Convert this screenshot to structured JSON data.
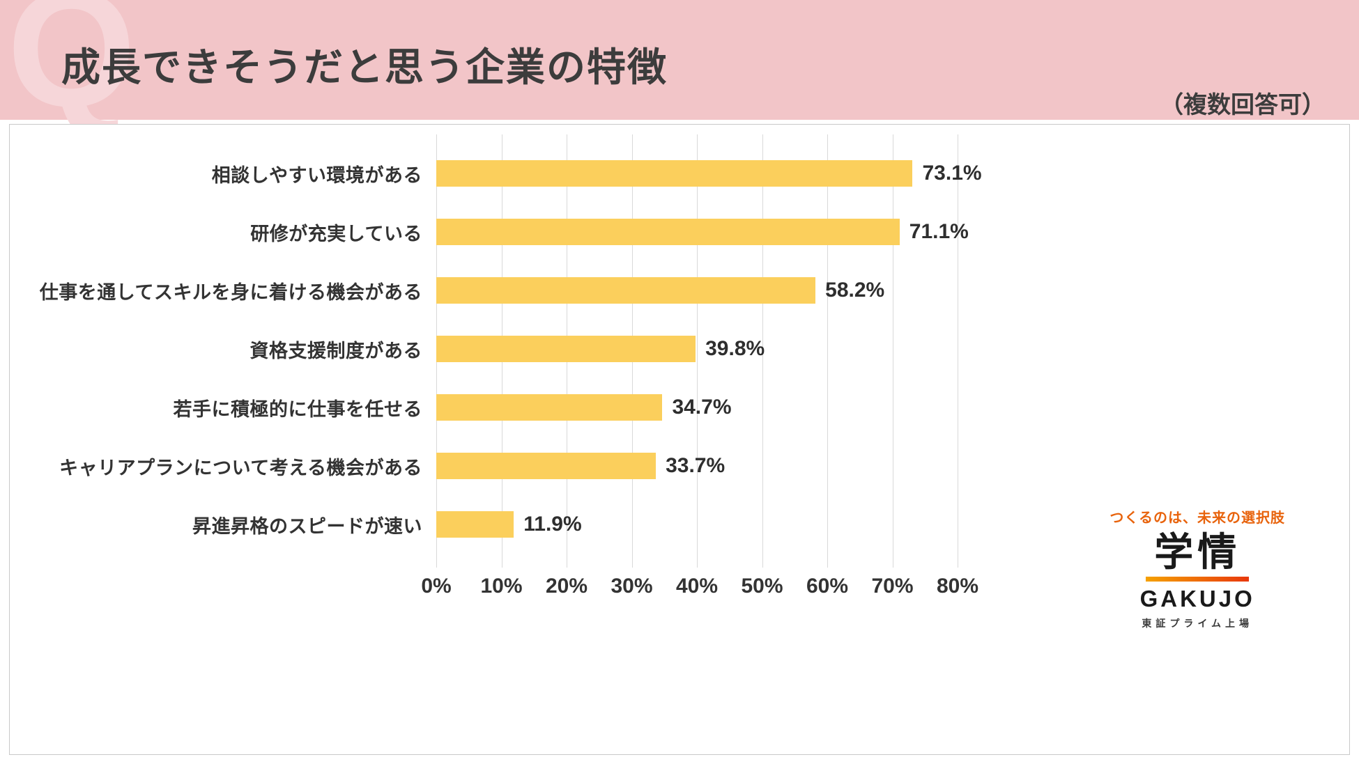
{
  "header": {
    "watermark": "Q",
    "title": "成長できそうだと思う企業の特徴",
    "note": "（複数回答可）"
  },
  "chart_data": {
    "type": "bar",
    "orientation": "horizontal",
    "title": "成長できそうだと思う企業の特徴",
    "categories": [
      "相談しやすい環境がある",
      "研修が充実している",
      "仕事を通してスキルを身に着ける機会がある",
      "資格支援制度がある",
      "若手に積極的に仕事を任せる",
      "キャリアプランについて考える機会がある",
      "昇進昇格のスピードが速い"
    ],
    "values": [
      73.1,
      71.1,
      58.2,
      39.8,
      34.7,
      33.7,
      11.9
    ],
    "value_labels": [
      "73.1%",
      "71.1%",
      "58.2%",
      "39.8%",
      "34.7%",
      "33.7%",
      "11.9%"
    ],
    "xlim": [
      0,
      80
    ],
    "x_ticks": [
      "0%",
      "10%",
      "20%",
      "30%",
      "40%",
      "50%",
      "60%",
      "70%",
      "80%"
    ],
    "grid": true,
    "legend": "none",
    "bar_color": "#FBCF5C"
  },
  "logo": {
    "tagline": "つくるのは、未来の選択肢",
    "name": "学情",
    "name_en": "GAKUJO",
    "sub": "東証プライム上場"
  },
  "colors": {
    "header_bg": "#F2C5C8",
    "watermark_pink": "#F6D6D9",
    "title_text": "#3C3C3C",
    "bar_yellow": "#FBCF5C",
    "gridline": "#D9D9D9",
    "accent_orange": "#E8630C",
    "panel_border": "#C9C9C9"
  }
}
